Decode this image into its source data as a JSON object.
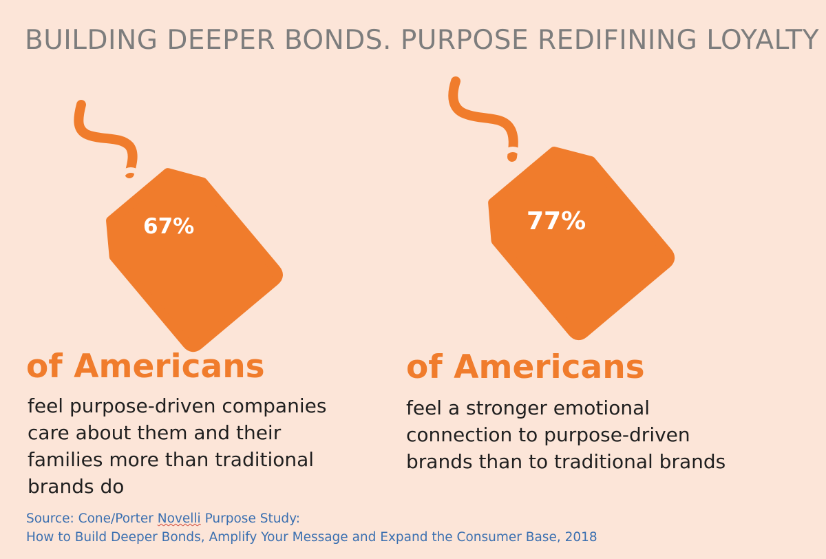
{
  "title": "BUILDING DEEPER BONDS. PURPOSE REDIFINING LOYALTY",
  "stat_left": {
    "percent": "67%",
    "headline": "of Americans",
    "description": "feel purpose-driven companies\ncare about them and their\nfamilies more than traditional\nbrands do",
    "icon": "price-tag-icon"
  },
  "stat_right": {
    "percent": "77%",
    "headline": "of  Americans",
    "description": "feel a stronger emotional\nconnection to purpose-driven\nbrands than to traditional brands",
    "icon": "price-tag-icon"
  },
  "source": {
    "prefix": "Source: Cone/Porter ",
    "underlined": "Novelli",
    "suffix": " Purpose Study:",
    "line2": "How to Build Deeper Bonds, Amplify Your Message and Expand the Consumer Base, 2018"
  },
  "colors": {
    "background": "#fce5d8",
    "accent": "#f07c2c",
    "title": "#7d7d7d",
    "source": "#3a6fb0"
  }
}
